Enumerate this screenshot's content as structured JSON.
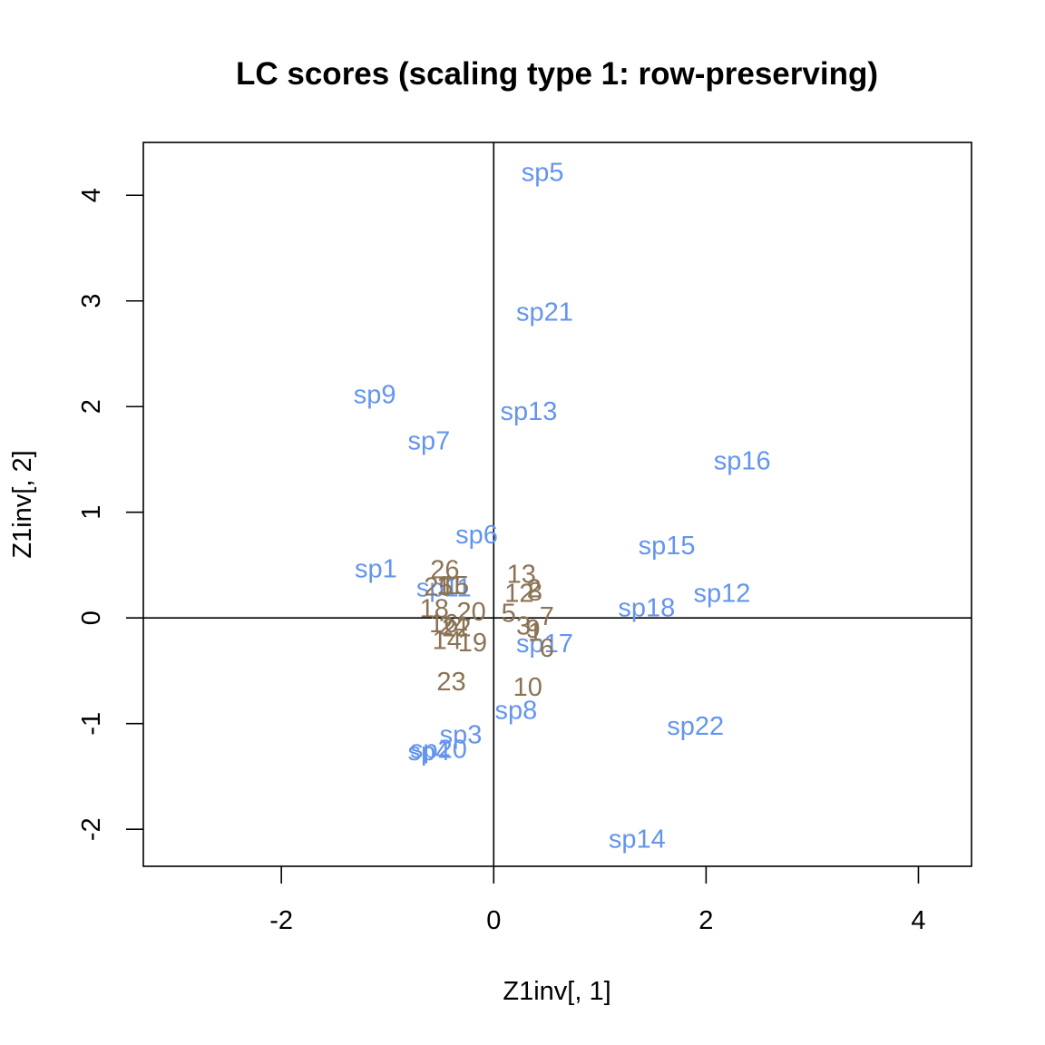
{
  "chart_data": {
    "type": "scatter",
    "title": "LC scores (scaling type 1: row-preserving)",
    "xlabel": "Z1inv[, 1]",
    "ylabel": "Z1inv[, 2]",
    "xlim": [
      -3.3,
      4.5
    ],
    "ylim": [
      -2.35,
      4.5
    ],
    "xticks": [
      -2,
      0,
      2,
      4
    ],
    "yticks": [
      -2,
      -1,
      0,
      1,
      2,
      3,
      4
    ],
    "grid": false,
    "reference_lines": {
      "x": 0,
      "y": 0
    },
    "colors": {
      "species": "#6495ED",
      "sites": "#8B7355"
    },
    "series": [
      {
        "color_key": "species",
        "points": [
          {
            "label": "sp5",
            "x": 0.46,
            "y": 4.22
          },
          {
            "label": "sp21",
            "x": 0.48,
            "y": 2.9
          },
          {
            "label": "sp9",
            "x": -1.12,
            "y": 2.12
          },
          {
            "label": "sp13",
            "x": 0.33,
            "y": 1.96
          },
          {
            "label": "sp7",
            "x": -0.61,
            "y": 1.68
          },
          {
            "label": "sp16",
            "x": 2.34,
            "y": 1.49
          },
          {
            "label": "sp6",
            "x": -0.16,
            "y": 0.79
          },
          {
            "label": "sp15",
            "x": 1.63,
            "y": 0.69
          },
          {
            "label": "sp1",
            "x": -1.11,
            "y": 0.47
          },
          {
            "label": "sp11",
            "x": -0.47,
            "y": 0.29
          },
          {
            "label": "sp12",
            "x": 2.15,
            "y": 0.24
          },
          {
            "label": "sp18",
            "x": 1.44,
            "y": 0.1
          },
          {
            "label": "sp17",
            "x": 0.48,
            "y": -0.24
          },
          {
            "label": "sp8",
            "x": 0.21,
            "y": -0.87
          },
          {
            "label": "sp22",
            "x": 1.9,
            "y": -1.02
          },
          {
            "label": "sp3",
            "x": -0.31,
            "y": -1.1
          },
          {
            "label": "sp20",
            "x": -0.52,
            "y": -1.24
          },
          {
            "label": "sp4",
            "x": -0.61,
            "y": -1.26
          },
          {
            "label": "sp14",
            "x": 1.35,
            "y": -2.09
          }
        ]
      },
      {
        "color_key": "sites",
        "points": [
          {
            "label": "26",
            "x": -0.46,
            "y": 0.46
          },
          {
            "label": "13",
            "x": 0.26,
            "y": 0.42
          },
          {
            "label": "25",
            "x": -0.52,
            "y": 0.3
          },
          {
            "label": "11",
            "x": -0.41,
            "y": 0.31
          },
          {
            "label": "15",
            "x": -0.37,
            "y": 0.31
          },
          {
            "label": "12",
            "x": 0.24,
            "y": 0.24
          },
          {
            "label": "2",
            "x": 0.38,
            "y": 0.28
          },
          {
            "label": "8",
            "x": 0.39,
            "y": 0.25
          },
          {
            "label": "18",
            "x": -0.56,
            "y": 0.09
          },
          {
            "label": "20",
            "x": -0.21,
            "y": 0.06
          },
          {
            "label": "5",
            "x": 0.14,
            "y": 0.05
          },
          {
            "label": "7",
            "x": 0.5,
            "y": 0.02
          },
          {
            "label": "16",
            "x": -0.47,
            "y": -0.05
          },
          {
            "label": "24",
            "x": -0.38,
            "y": -0.07
          },
          {
            "label": "22",
            "x": -0.35,
            "y": -0.09
          },
          {
            "label": "3",
            "x": 0.28,
            "y": -0.07
          },
          {
            "label": "9",
            "x": 0.37,
            "y": -0.1
          },
          {
            "label": "1",
            "x": 0.39,
            "y": -0.13
          },
          {
            "label": "14",
            "x": -0.44,
            "y": -0.21
          },
          {
            "label": "19",
            "x": -0.2,
            "y": -0.23
          },
          {
            "label": "6",
            "x": 0.5,
            "y": -0.28
          },
          {
            "label": "23",
            "x": -0.4,
            "y": -0.6
          },
          {
            "label": "10",
            "x": 0.32,
            "y": -0.65
          }
        ]
      }
    ]
  }
}
